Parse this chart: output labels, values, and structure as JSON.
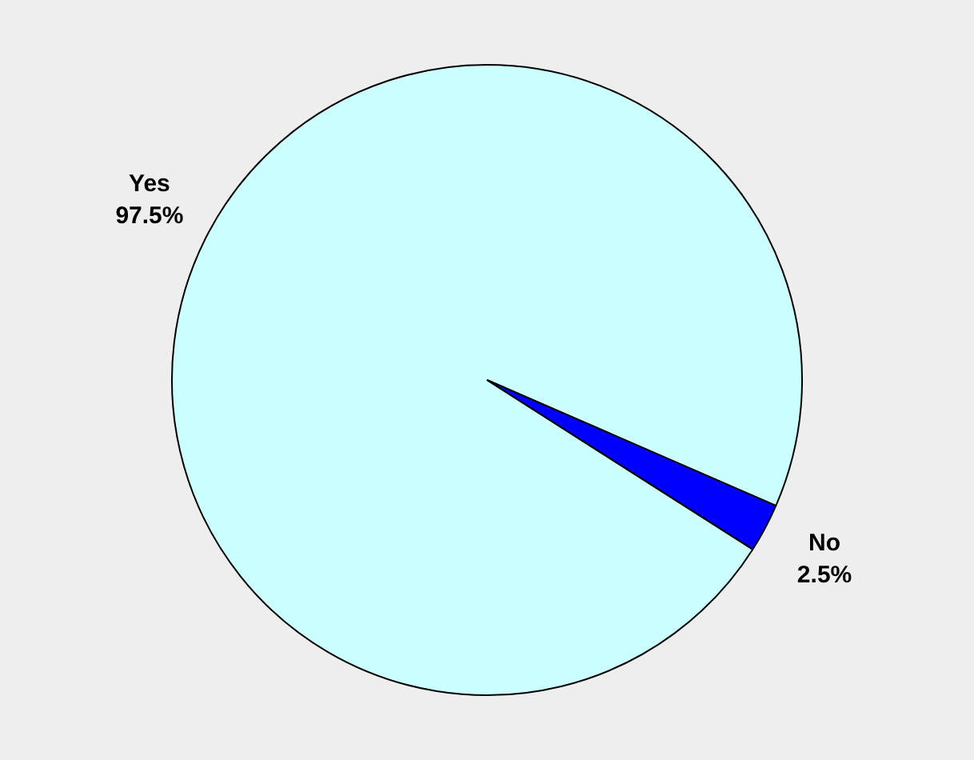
{
  "chart_data": {
    "type": "pie",
    "categories": [
      "Yes",
      "No"
    ],
    "values": [
      97.5,
      2.5
    ],
    "colors": [
      "#ccffff",
      "#0000ff"
    ],
    "value_labels": [
      "97.5%",
      "2.5%"
    ],
    "legend": false
  }
}
